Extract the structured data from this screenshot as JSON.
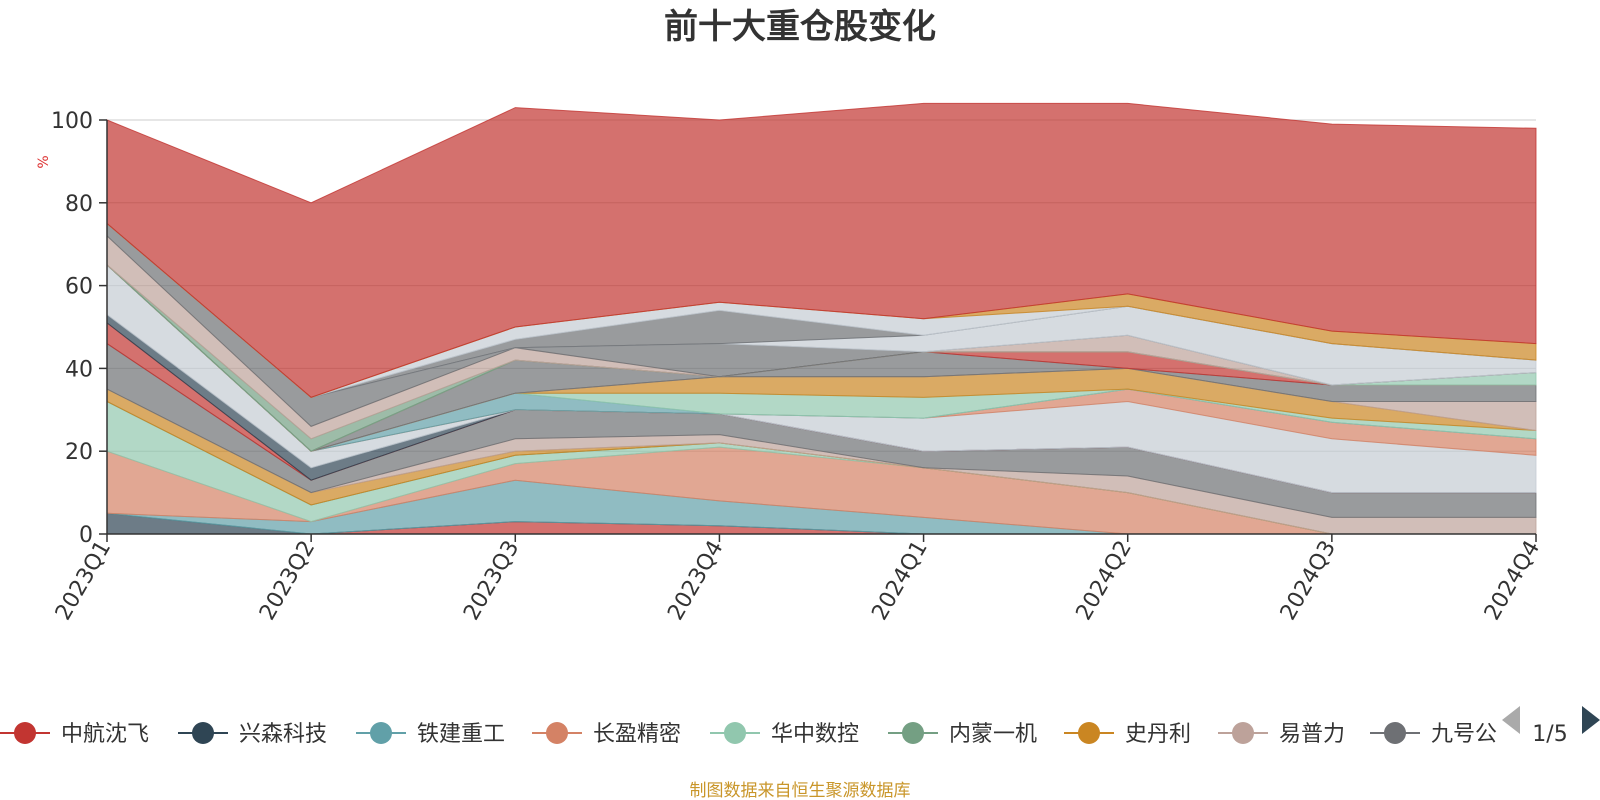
{
  "chart_data": {
    "type": "area",
    "stacked": true,
    "title": "前十大重仓股变化",
    "ylabel": "%",
    "ylim": [
      0,
      100
    ],
    "yticks": [
      0,
      20,
      40,
      60,
      80,
      100
    ],
    "grid": true,
    "categories": [
      "2023Q1",
      "2023Q2",
      "2023Q3",
      "2023Q4",
      "2024Q1",
      "2024Q2",
      "2024Q3",
      "2024Q4"
    ],
    "series": [
      {
        "name": "中航沈飞",
        "color": "#c23531",
        "values": [
          0,
          0,
          3,
          2,
          0,
          0,
          0,
          0
        ]
      },
      {
        "name": "兴森科技",
        "color": "#2f4554",
        "values": [
          5,
          0,
          0,
          0,
          0,
          0,
          0,
          0
        ]
      },
      {
        "name": "铁建重工",
        "color": "#61a0a8",
        "values": [
          0,
          3,
          10,
          6,
          4,
          0,
          0,
          0
        ]
      },
      {
        "name": "长盈精密",
        "color": "#d48265",
        "values": [
          15,
          0,
          4,
          13,
          12,
          10,
          0,
          0
        ]
      },
      {
        "name": "华中数控",
        "color": "#91c7ae",
        "values": [
          12,
          4,
          2,
          1,
          0,
          0,
          0,
          0
        ]
      },
      {
        "name": "内蒙一机",
        "color": "#749f83",
        "values": [
          0,
          0,
          0,
          0,
          0,
          0,
          0,
          0
        ]
      },
      {
        "name": "史丹利",
        "color": "#ca8622",
        "values": [
          3,
          3,
          1,
          0,
          0,
          0,
          0,
          0
        ]
      },
      {
        "name": "易普力",
        "color": "#bda29a",
        "values": [
          0,
          0,
          3,
          2,
          0,
          4,
          4,
          4
        ]
      },
      {
        "name": "九号公司",
        "color": "#6e7074",
        "values": [
          11,
          3,
          7,
          5,
          4,
          7,
          6,
          6
        ]
      },
      {
        "name": "",
        "color": "#c23531",
        "values": [
          5,
          0,
          0,
          0,
          0,
          0,
          0,
          0
        ]
      },
      {
        "name": "",
        "color": "#2f4554",
        "values": [
          2,
          3,
          0,
          0,
          0,
          0,
          0,
          0
        ]
      },
      {
        "name": "",
        "color": "#c4ccd3",
        "values": [
          12,
          4,
          0,
          0,
          8,
          11,
          13,
          9
        ]
      },
      {
        "name": "",
        "color": "#d48265",
        "values": [
          0,
          0,
          0,
          0,
          0,
          3,
          4,
          4
        ]
      },
      {
        "name": "",
        "color": "#61a0a8",
        "values": [
          0,
          0,
          4,
          0,
          0,
          0,
          0,
          0
        ]
      },
      {
        "name": "",
        "color": "#91c7ae",
        "values": [
          0,
          0,
          0,
          5,
          5,
          0,
          1,
          2
        ]
      },
      {
        "name": "",
        "color": "#ca8622",
        "values": [
          0,
          0,
          0,
          4,
          5,
          5,
          4,
          0
        ]
      },
      {
        "name": "",
        "color": "#bda29a",
        "values": [
          0,
          0,
          0,
          0,
          0,
          0,
          0,
          7
        ]
      },
      {
        "name": "",
        "color": "#6e7074",
        "values": [
          0,
          0,
          8,
          0,
          6,
          0,
          4,
          4
        ]
      },
      {
        "name": "",
        "color": "#c23531",
        "values": [
          0,
          0,
          0,
          0,
          0,
          4,
          0,
          0
        ]
      },
      {
        "name": "",
        "color": "#91c7ae",
        "values": [
          0,
          0,
          0,
          0,
          0,
          0,
          0,
          3
        ]
      },
      {
        "name": "",
        "color": "#749f83",
        "values": [
          0,
          3,
          0,
          0,
          0,
          0,
          0,
          0
        ]
      },
      {
        "name": "",
        "color": "#bda29a",
        "values": [
          7,
          3,
          3,
          0,
          0,
          4,
          0,
          0
        ]
      },
      {
        "name": "",
        "color": "#6e7074",
        "values": [
          3,
          7,
          0,
          8,
          0,
          0,
          0,
          0
        ]
      },
      {
        "name": "",
        "color": "#c4ccd3",
        "values": [
          0,
          0,
          0,
          0,
          4,
          7,
          10,
          3
        ]
      },
      {
        "name": "",
        "color": "#6e7074",
        "values": [
          0,
          0,
          2,
          8,
          0,
          0,
          0,
          0
        ]
      },
      {
        "name": "",
        "color": "#c4ccd3",
        "values": [
          0,
          0,
          3,
          2,
          4,
          0,
          0,
          0
        ]
      },
      {
        "name": "",
        "color": "#ca8622",
        "values": [
          0,
          0,
          0,
          0,
          0,
          3,
          3,
          4
        ]
      },
      {
        "name": "",
        "color": "#c23531",
        "values": [
          25,
          47,
          53,
          44,
          52,
          46,
          50,
          52
        ]
      }
    ],
    "legend": {
      "items": [
        "中航沈飞",
        "兴森科技",
        "铁建重工",
        "长盈精密",
        "华中数控",
        "内蒙一机",
        "史丹利",
        "易普力",
        "九号公"
      ],
      "colors": [
        "#c23531",
        "#2f4554",
        "#61a0a8",
        "#d48265",
        "#91c7ae",
        "#749f83",
        "#ca8622",
        "#bda29a",
        "#6e7074"
      ],
      "position": "bottom",
      "page": "1/5"
    }
  },
  "footer": {
    "source_text": "制图数据来自恒生聚源数据库"
  }
}
